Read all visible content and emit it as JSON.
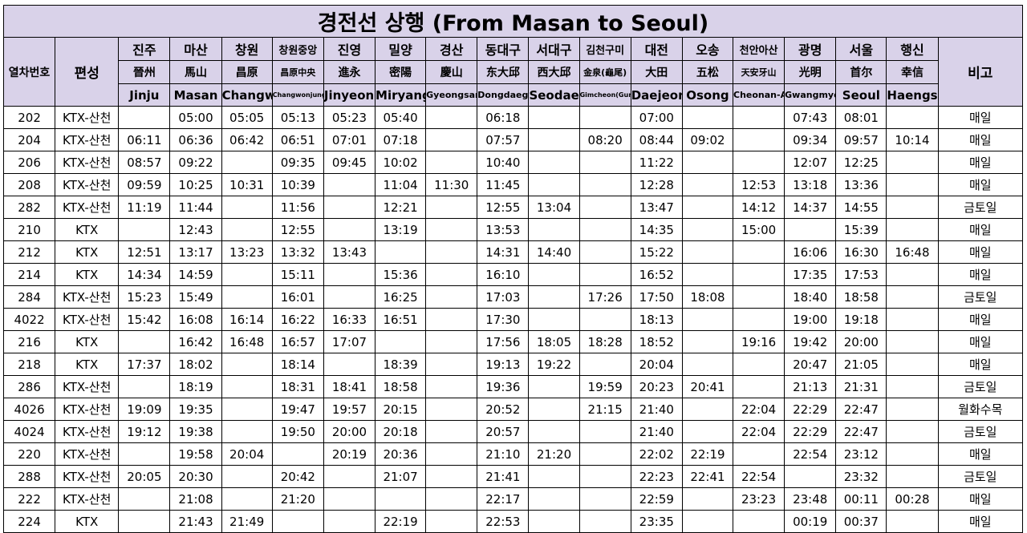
{
  "title": "경전선 상행 (From Masan to Seoul)",
  "col_headers": {
    "train_no": "열차번호",
    "consist": "편성",
    "remarks": "비고"
  },
  "stations": [
    {
      "ko": "진주",
      "han": "晉州",
      "en": "Jinju"
    },
    {
      "ko": "마산",
      "han": "馬山",
      "en": "Masan"
    },
    {
      "ko": "창원",
      "han": "昌原",
      "en": "Changwon"
    },
    {
      "ko": "창원중앙",
      "han": "昌原中央",
      "en": "Changwonjungang"
    },
    {
      "ko": "진영",
      "han": "進永",
      "en": "Jinyeong"
    },
    {
      "ko": "밀양",
      "han": "密陽",
      "en": "Miryang"
    },
    {
      "ko": "경산",
      "han": "慶山",
      "en": "Gyeongsan"
    },
    {
      "ko": "동대구",
      "han": "东大邱",
      "en": "Dongdaegu"
    },
    {
      "ko": "서대구",
      "han": "西大邱",
      "en": "Seodaegu"
    },
    {
      "ko": "김천구미",
      "han": "金泉(龜尾)",
      "en": "Gimcheon(Gumi)"
    },
    {
      "ko": "대전",
      "han": "大田",
      "en": "Daejeon"
    },
    {
      "ko": "오송",
      "han": "五松",
      "en": "Osong"
    },
    {
      "ko": "천안아산",
      "han": "天安牙山",
      "en": "Cheonan-Asan"
    },
    {
      "ko": "광명",
      "han": "光明",
      "en": "Gwangmyeong"
    },
    {
      "ko": "서울",
      "han": "首尔",
      "en": "Seoul"
    },
    {
      "ko": "행신",
      "han": "幸信",
      "en": "Haengsin"
    }
  ],
  "rows": [
    {
      "no": "202",
      "type": "KTX-산천",
      "times": [
        "",
        "05:00",
        "05:05",
        "05:13",
        "05:23",
        "05:40",
        "",
        "06:18",
        "",
        "",
        "07:00",
        "",
        "",
        "07:43",
        "08:01",
        ""
      ],
      "note": "매일"
    },
    {
      "no": "204",
      "type": "KTX-산천",
      "times": [
        "06:11",
        "06:36",
        "06:42",
        "06:51",
        "07:01",
        "07:18",
        "",
        "07:57",
        "",
        "08:20",
        "08:44",
        "09:02",
        "",
        "09:34",
        "09:57",
        "10:14"
      ],
      "note": "매일"
    },
    {
      "no": "206",
      "type": "KTX-산천",
      "times": [
        "08:57",
        "09:22",
        "",
        "09:35",
        "09:45",
        "10:02",
        "",
        "10:40",
        "",
        "",
        "11:22",
        "",
        "",
        "12:07",
        "12:25",
        ""
      ],
      "note": "매일"
    },
    {
      "no": "208",
      "type": "KTX-산천",
      "times": [
        "09:59",
        "10:25",
        "10:31",
        "10:39",
        "",
        "11:04",
        "11:30",
        "11:45",
        "",
        "",
        "12:28",
        "",
        "12:53",
        "13:18",
        "13:36",
        ""
      ],
      "note": "매일"
    },
    {
      "no": "282",
      "type": "KTX-산천",
      "times": [
        "11:19",
        "11:44",
        "",
        "11:56",
        "",
        "12:21",
        "",
        "12:55",
        "13:04",
        "",
        "13:47",
        "",
        "14:12",
        "14:37",
        "14:55",
        ""
      ],
      "note": "금토일"
    },
    {
      "no": "210",
      "type": "KTX",
      "times": [
        "",
        "12:43",
        "",
        "12:55",
        "",
        "13:19",
        "",
        "13:53",
        "",
        "",
        "14:35",
        "",
        "15:00",
        "",
        "15:39",
        ""
      ],
      "note": "매일"
    },
    {
      "no": "212",
      "type": "KTX",
      "times": [
        "12:51",
        "13:17",
        "13:23",
        "13:32",
        "13:43",
        "",
        "",
        "14:31",
        "14:40",
        "",
        "15:22",
        "",
        "",
        "16:06",
        "16:30",
        "16:48"
      ],
      "note": "매일"
    },
    {
      "no": "214",
      "type": "KTX",
      "times": [
        "14:34",
        "14:59",
        "",
        "15:11",
        "",
        "15:36",
        "",
        "16:10",
        "",
        "",
        "16:52",
        "",
        "",
        "17:35",
        "17:53",
        ""
      ],
      "note": "매일"
    },
    {
      "no": "284",
      "type": "KTX-산천",
      "times": [
        "15:23",
        "15:49",
        "",
        "16:01",
        "",
        "16:25",
        "",
        "17:03",
        "",
        "17:26",
        "17:50",
        "18:08",
        "",
        "18:40",
        "18:58",
        ""
      ],
      "note": "금토일"
    },
    {
      "no": "4022",
      "type": "KTX-산천",
      "times": [
        "15:42",
        "16:08",
        "16:14",
        "16:22",
        "16:33",
        "16:51",
        "",
        "17:30",
        "",
        "",
        "18:13",
        "",
        "",
        "19:00",
        "19:18",
        ""
      ],
      "note": "매일"
    },
    {
      "no": "216",
      "type": "KTX",
      "times": [
        "",
        "16:42",
        "16:48",
        "16:57",
        "17:07",
        "",
        "",
        "17:56",
        "18:05",
        "18:28",
        "18:52",
        "",
        "19:16",
        "19:42",
        "20:00",
        ""
      ],
      "note": "매일"
    },
    {
      "no": "218",
      "type": "KTX",
      "times": [
        "17:37",
        "18:02",
        "",
        "18:14",
        "",
        "18:39",
        "",
        "19:13",
        "19:22",
        "",
        "20:04",
        "",
        "",
        "20:47",
        "21:05",
        ""
      ],
      "note": "매일"
    },
    {
      "no": "286",
      "type": "KTX-산천",
      "times": [
        "",
        "18:19",
        "",
        "18:31",
        "18:41",
        "18:58",
        "",
        "19:36",
        "",
        "19:59",
        "20:23",
        "20:41",
        "",
        "21:13",
        "21:31",
        ""
      ],
      "note": "금토일"
    },
    {
      "no": "4026",
      "type": "KTX-산천",
      "times": [
        "19:09",
        "19:35",
        "",
        "19:47",
        "19:57",
        "20:15",
        "",
        "20:52",
        "",
        "21:15",
        "21:40",
        "",
        "22:04",
        "22:29",
        "22:47",
        ""
      ],
      "note": "월화수목"
    },
    {
      "no": "4024",
      "type": "KTX-산천",
      "times": [
        "19:12",
        "19:38",
        "",
        "19:50",
        "20:00",
        "20:18",
        "",
        "20:57",
        "",
        "",
        "21:40",
        "",
        "22:04",
        "22:29",
        "22:47",
        ""
      ],
      "note": "금토일"
    },
    {
      "no": "220",
      "type": "KTX-산천",
      "times": [
        "",
        "19:58",
        "20:04",
        "",
        "20:19",
        "20:36",
        "",
        "21:10",
        "21:20",
        "",
        "22:02",
        "22:19",
        "",
        "22:54",
        "23:12",
        ""
      ],
      "note": "매일"
    },
    {
      "no": "288",
      "type": "KTX-산천",
      "times": [
        "20:05",
        "20:30",
        "",
        "20:42",
        "",
        "21:07",
        "",
        "21:41",
        "",
        "",
        "22:23",
        "22:41",
        "22:54",
        "",
        "23:32",
        ""
      ],
      "note": "금토일"
    },
    {
      "no": "222",
      "type": "KTX-산천",
      "times": [
        "",
        "21:08",
        "",
        "21:20",
        "",
        "",
        "",
        "22:17",
        "",
        "",
        "22:59",
        "",
        "23:23",
        "23:48",
        "00:11",
        "00:28"
      ],
      "note": "매일"
    },
    {
      "no": "224",
      "type": "KTX",
      "times": [
        "",
        "21:43",
        "21:49",
        "",
        "",
        "22:19",
        "",
        "22:53",
        "",
        "",
        "23:35",
        "",
        "",
        "00:19",
        "00:37",
        ""
      ],
      "note": "매일"
    }
  ]
}
